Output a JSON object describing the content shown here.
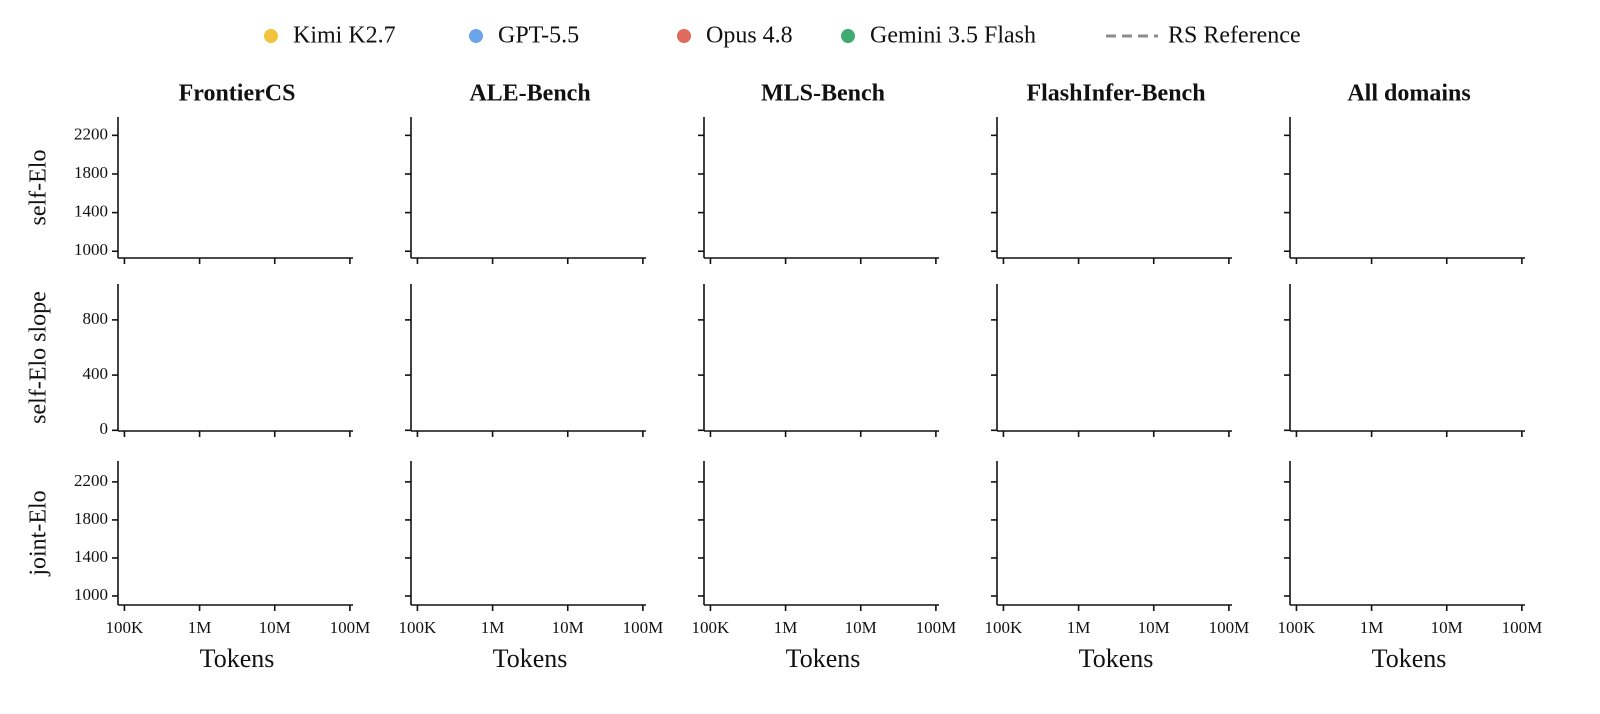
{
  "chart_data": {
    "type": "line",
    "x_log": true,
    "grid": false,
    "legend": "top",
    "series": [
      {
        "name": "Kimi K2.7",
        "color": "#f2c43d"
      },
      {
        "name": "GPT-5.5",
        "color": "#6ca4ea"
      },
      {
        "name": "Opus 4.8",
        "color": "#e06a5e"
      },
      {
        "name": "Gemini 3.5 Flash",
        "color": "#3fab73"
      },
      {
        "name": "RS Reference",
        "color": "#8c8c8c",
        "dash": true
      }
    ],
    "columns": [
      "FrontierCS",
      "ALE-Bench",
      "MLS-Bench",
      "FlashInfer-Bench",
      "All domains"
    ],
    "xlabel": "Tokens",
    "xlim": [
      90000,
      110000000
    ],
    "xticks": [
      {
        "value": 100000,
        "label": "100K"
      },
      {
        "value": 1000000,
        "label": "1M"
      },
      {
        "value": 10000000,
        "label": "10M"
      },
      {
        "value": 100000000,
        "label": "100M"
      }
    ],
    "rows": [
      {
        "ylabel": "self-Elo",
        "ylim": [
          930,
          2390
        ],
        "yticks": [
          1000,
          1400,
          1800,
          2200
        ]
      },
      {
        "ylabel": "self-Elo slope",
        "ylim": [
          -5,
          1060
        ],
        "yticks": [
          0,
          400,
          800
        ]
      },
      {
        "ylabel": "joint-Elo",
        "ylim": [
          905,
          2420
        ],
        "yticks": [
          1000,
          1400,
          1800,
          2200
        ]
      }
    ]
  }
}
